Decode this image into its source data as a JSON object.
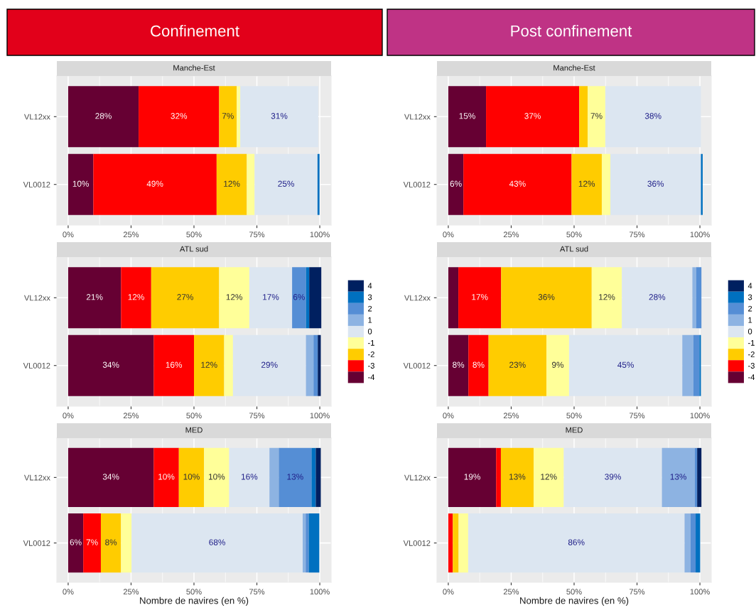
{
  "chart_data": [
    {
      "type": "bar",
      "orientation": "horizontal",
      "stacked": true,
      "title": "Confinement",
      "subtitle": "Manche-Est",
      "categories": [
        "VL12xx",
        "VL0012"
      ],
      "xlim": [
        -4.5,
        104.5
      ],
      "xticks": [
        {
          "value": 0,
          "label": "0%"
        },
        {
          "value": 25,
          "label": "25%"
        },
        {
          "value": 50,
          "label": "50%"
        },
        {
          "value": 75,
          "label": "75%"
        },
        {
          "value": 100,
          "label": "100%"
        }
      ],
      "grid": true,
      "series": [
        {
          "color": "#660033",
          "values": [
            28,
            10
          ],
          "value_labels": [
            "28%",
            "10%"
          ]
        },
        {
          "color": "#ff0000",
          "values": [
            32,
            49
          ],
          "value_labels": [
            "32%",
            "49%"
          ]
        },
        {
          "color": "#ffcc00",
          "values": [
            7,
            12
          ],
          "value_labels": [
            "7%",
            "12%"
          ]
        },
        {
          "color": "#ffff99",
          "values": [
            1.4,
            3.1
          ],
          "value_labels": [
            null,
            null
          ]
        },
        {
          "color": "#dce6f1",
          "values": [
            31,
            25
          ],
          "value_labels": [
            "31%",
            "25%"
          ]
        },
        {
          "color": "#8db3e2",
          "values": [
            0,
            0
          ],
          "value_labels": [
            null,
            null
          ]
        },
        {
          "color": "#558ed5",
          "values": [
            0,
            0
          ],
          "value_labels": [
            null,
            null
          ]
        },
        {
          "color": "#0070c0",
          "values": [
            0,
            0.8
          ],
          "value_labels": [
            null,
            null
          ]
        },
        {
          "color": "#002060",
          "values": [
            0,
            0
          ],
          "value_labels": [
            null,
            null
          ]
        }
      ]
    },
    {
      "type": "bar",
      "orientation": "horizontal",
      "stacked": true,
      "title": "Post confinement",
      "subtitle": "Manche-Est",
      "categories": [
        "VL12xx",
        "VL0012"
      ],
      "xlim": [
        -4.5,
        104.5
      ],
      "xticks": [
        {
          "value": 0,
          "label": "0%"
        },
        {
          "value": 25,
          "label": "25%"
        },
        {
          "value": 50,
          "label": "50%"
        },
        {
          "value": 75,
          "label": "75%"
        },
        {
          "value": 100,
          "label": "100%"
        }
      ],
      "grid": true,
      "series": [
        {
          "color": "#660033",
          "values": [
            15,
            6
          ],
          "value_labels": [
            "15%",
            "6%"
          ]
        },
        {
          "color": "#ff0000",
          "values": [
            37,
            43
          ],
          "value_labels": [
            "37%",
            "43%"
          ]
        },
        {
          "color": "#ffcc00",
          "values": [
            3.4,
            12
          ],
          "value_labels": [
            null,
            "12%"
          ]
        },
        {
          "color": "#ffff99",
          "values": [
            7,
            3.4
          ],
          "value_labels": [
            "7%",
            null
          ]
        },
        {
          "color": "#dce6f1",
          "values": [
            38,
            36
          ],
          "value_labels": [
            "38%",
            "36%"
          ]
        },
        {
          "color": "#8db3e2",
          "values": [
            0,
            0
          ],
          "value_labels": [
            null,
            null
          ]
        },
        {
          "color": "#558ed5",
          "values": [
            0,
            0
          ],
          "value_labels": [
            null,
            null
          ]
        },
        {
          "color": "#0070c0",
          "values": [
            0,
            0.7
          ],
          "value_labels": [
            null,
            null
          ]
        },
        {
          "color": "#002060",
          "values": [
            0,
            0
          ],
          "value_labels": [
            null,
            null
          ]
        }
      ]
    },
    {
      "type": "bar",
      "orientation": "horizontal",
      "stacked": true,
      "subtitle": "ATL sud",
      "categories": [
        "VL12xx",
        "VL0012"
      ],
      "xlim": [
        -4.5,
        104.5
      ],
      "xticks": [
        {
          "value": 0,
          "label": "0%"
        },
        {
          "value": 25,
          "label": "25%"
        },
        {
          "value": 50,
          "label": "50%"
        },
        {
          "value": 75,
          "label": "75%"
        },
        {
          "value": 100,
          "label": "100%"
        }
      ],
      "grid": true,
      "legend": "right",
      "series": [
        {
          "name": "-4",
          "color": "#660033",
          "values": [
            21,
            34
          ],
          "value_labels": [
            "21%",
            "34%"
          ]
        },
        {
          "name": "-3",
          "color": "#ff0000",
          "values": [
            12,
            16
          ],
          "value_labels": [
            "12%",
            "16%"
          ]
        },
        {
          "name": "-2",
          "color": "#ffcc00",
          "values": [
            27,
            12
          ],
          "value_labels": [
            "27%",
            "12%"
          ]
        },
        {
          "name": "-1",
          "color": "#ffff99",
          "values": [
            12,
            3.5
          ],
          "value_labels": [
            "12%",
            null
          ]
        },
        {
          "name": "0",
          "color": "#dce6f1",
          "values": [
            17,
            29
          ],
          "value_labels": [
            "17%",
            "29%"
          ]
        },
        {
          "name": "1",
          "color": "#8db3e2",
          "values": [
            0,
            3.0
          ],
          "value_labels": [
            null,
            null
          ]
        },
        {
          "name": "2",
          "color": "#558ed5",
          "values": [
            5.5,
            1.7
          ],
          "value_labels": [
            "6%",
            null
          ]
        },
        {
          "name": "3",
          "color": "#0070c0",
          "values": [
            1.3,
            0
          ],
          "value_labels": [
            null,
            null
          ]
        },
        {
          "name": "4",
          "color": "#002060",
          "values": [
            4.8,
            1.2
          ],
          "value_labels": [
            null,
            null
          ]
        }
      ]
    },
    {
      "type": "bar",
      "orientation": "horizontal",
      "stacked": true,
      "subtitle": "ATL sud",
      "categories": [
        "VL12xx",
        "VL0012"
      ],
      "xlim": [
        -4.5,
        104.5
      ],
      "xticks": [
        {
          "value": 0,
          "label": "0%"
        },
        {
          "value": 25,
          "label": "25%"
        },
        {
          "value": 50,
          "label": "50%"
        },
        {
          "value": 75,
          "label": "75%"
        },
        {
          "value": 100,
          "label": "100%"
        }
      ],
      "grid": true,
      "legend": "right",
      "series": [
        {
          "name": "-4",
          "color": "#660033",
          "values": [
            4,
            8
          ],
          "value_labels": [
            null,
            "8%"
          ]
        },
        {
          "name": "-3",
          "color": "#ff0000",
          "values": [
            17,
            8
          ],
          "value_labels": [
            "17%",
            "8%"
          ]
        },
        {
          "name": "-2",
          "color": "#ffcc00",
          "values": [
            36,
            23
          ],
          "value_labels": [
            "36%",
            "23%"
          ]
        },
        {
          "name": "-1",
          "color": "#ffff99",
          "values": [
            12,
            9
          ],
          "value_labels": [
            "12%",
            "9%"
          ]
        },
        {
          "name": "0",
          "color": "#dce6f1",
          "values": [
            28,
            45
          ],
          "value_labels": [
            "28%",
            "45%"
          ]
        },
        {
          "name": "1",
          "color": "#8db3e2",
          "values": [
            1.5,
            4.4
          ],
          "value_labels": [
            null,
            null
          ]
        },
        {
          "name": "2",
          "color": "#558ed5",
          "values": [
            2.1,
            2.4
          ],
          "value_labels": [
            null,
            null
          ]
        },
        {
          "name": "3",
          "color": "#0070c0",
          "values": [
            0,
            0.6
          ],
          "value_labels": [
            null,
            null
          ]
        },
        {
          "name": "4",
          "color": "#002060",
          "values": [
            0,
            0
          ],
          "value_labels": [
            null,
            null
          ]
        }
      ]
    },
    {
      "type": "bar",
      "orientation": "horizontal",
      "stacked": true,
      "subtitle": "MED",
      "xlabel": "Nombre de navires (en %)",
      "categories": [
        "VL12xx",
        "VL0012"
      ],
      "xlim": [
        -4.5,
        104.5
      ],
      "xticks": [
        {
          "value": 0,
          "label": "0%"
        },
        {
          "value": 25,
          "label": "25%"
        },
        {
          "value": 50,
          "label": "50%"
        },
        {
          "value": 75,
          "label": "75%"
        },
        {
          "value": 100,
          "label": "100%"
        }
      ],
      "grid": true,
      "series": [
        {
          "color": "#660033",
          "values": [
            34,
            6
          ],
          "value_labels": [
            "34%",
            "6%"
          ]
        },
        {
          "color": "#ff0000",
          "values": [
            10,
            7
          ],
          "value_labels": [
            "10%",
            "7%"
          ]
        },
        {
          "color": "#ffcc00",
          "values": [
            10,
            8
          ],
          "value_labels": [
            "10%",
            "8%"
          ]
        },
        {
          "color": "#ffff99",
          "values": [
            10,
            4.2
          ],
          "value_labels": [
            "10%",
            null
          ]
        },
        {
          "color": "#dce6f1",
          "values": [
            16,
            68
          ],
          "value_labels": [
            "16%",
            "68%"
          ]
        },
        {
          "color": "#8db3e2",
          "values": [
            3.7,
            1.2
          ],
          "value_labels": [
            null,
            null
          ]
        },
        {
          "color": "#558ed5",
          "values": [
            13,
            1.2
          ],
          "value_labels": [
            "13%",
            null
          ]
        },
        {
          "color": "#0070c0",
          "values": [
            1.7,
            4.2
          ],
          "value_labels": [
            null,
            null
          ]
        },
        {
          "color": "#002060",
          "values": [
            2,
            0
          ],
          "value_labels": [
            null,
            null
          ]
        }
      ]
    },
    {
      "type": "bar",
      "orientation": "horizontal",
      "stacked": true,
      "subtitle": "MED",
      "xlabel": "Nombre de navires (en %)",
      "categories": [
        "VL12xx",
        "VL0012"
      ],
      "xlim": [
        -4.5,
        104.5
      ],
      "xticks": [
        {
          "value": 0,
          "label": "0%"
        },
        {
          "value": 25,
          "label": "25%"
        },
        {
          "value": 50,
          "label": "50%"
        },
        {
          "value": 75,
          "label": "75%"
        },
        {
          "value": 100,
          "label": "100%"
        }
      ],
      "grid": true,
      "series": [
        {
          "color": "#660033",
          "values": [
            19,
            0
          ],
          "value_labels": [
            "19%",
            null
          ]
        },
        {
          "color": "#ff0000",
          "values": [
            1.9,
            1.8
          ],
          "value_labels": [
            null,
            null
          ]
        },
        {
          "color": "#ffcc00",
          "values": [
            13,
            2.3
          ],
          "value_labels": [
            "13%",
            null
          ]
        },
        {
          "color": "#ffff99",
          "values": [
            12,
            3.8
          ],
          "value_labels": [
            "12%",
            null
          ]
        },
        {
          "color": "#dce6f1",
          "values": [
            39,
            86
          ],
          "value_labels": [
            "39%",
            "86%"
          ]
        },
        {
          "color": "#8db3e2",
          "values": [
            13,
            2.4
          ],
          "value_labels": [
            "13%",
            null
          ]
        },
        {
          "color": "#558ed5",
          "values": [
            1.0,
            2.0
          ],
          "value_labels": [
            null,
            null
          ]
        },
        {
          "color": "#0070c0",
          "values": [
            0,
            1.8
          ],
          "value_labels": [
            null,
            null
          ]
        },
        {
          "color": "#002060",
          "values": [
            1.7,
            0
          ],
          "value_labels": [
            null,
            null
          ]
        }
      ]
    }
  ]
}
